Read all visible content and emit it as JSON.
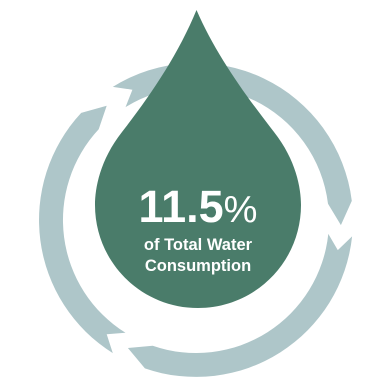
{
  "stat": {
    "value": "11.5",
    "unit": "%",
    "caption_line1": "of Total Water",
    "caption_line2": "Consumption"
  },
  "colors": {
    "drop": "#4a7c6a",
    "ring": "#aec6c9",
    "text": "#ffffff",
    "background": "#ffffff"
  },
  "icons": {
    "drop": "water-drop-icon",
    "cycle": "recycle-ring-icon"
  }
}
